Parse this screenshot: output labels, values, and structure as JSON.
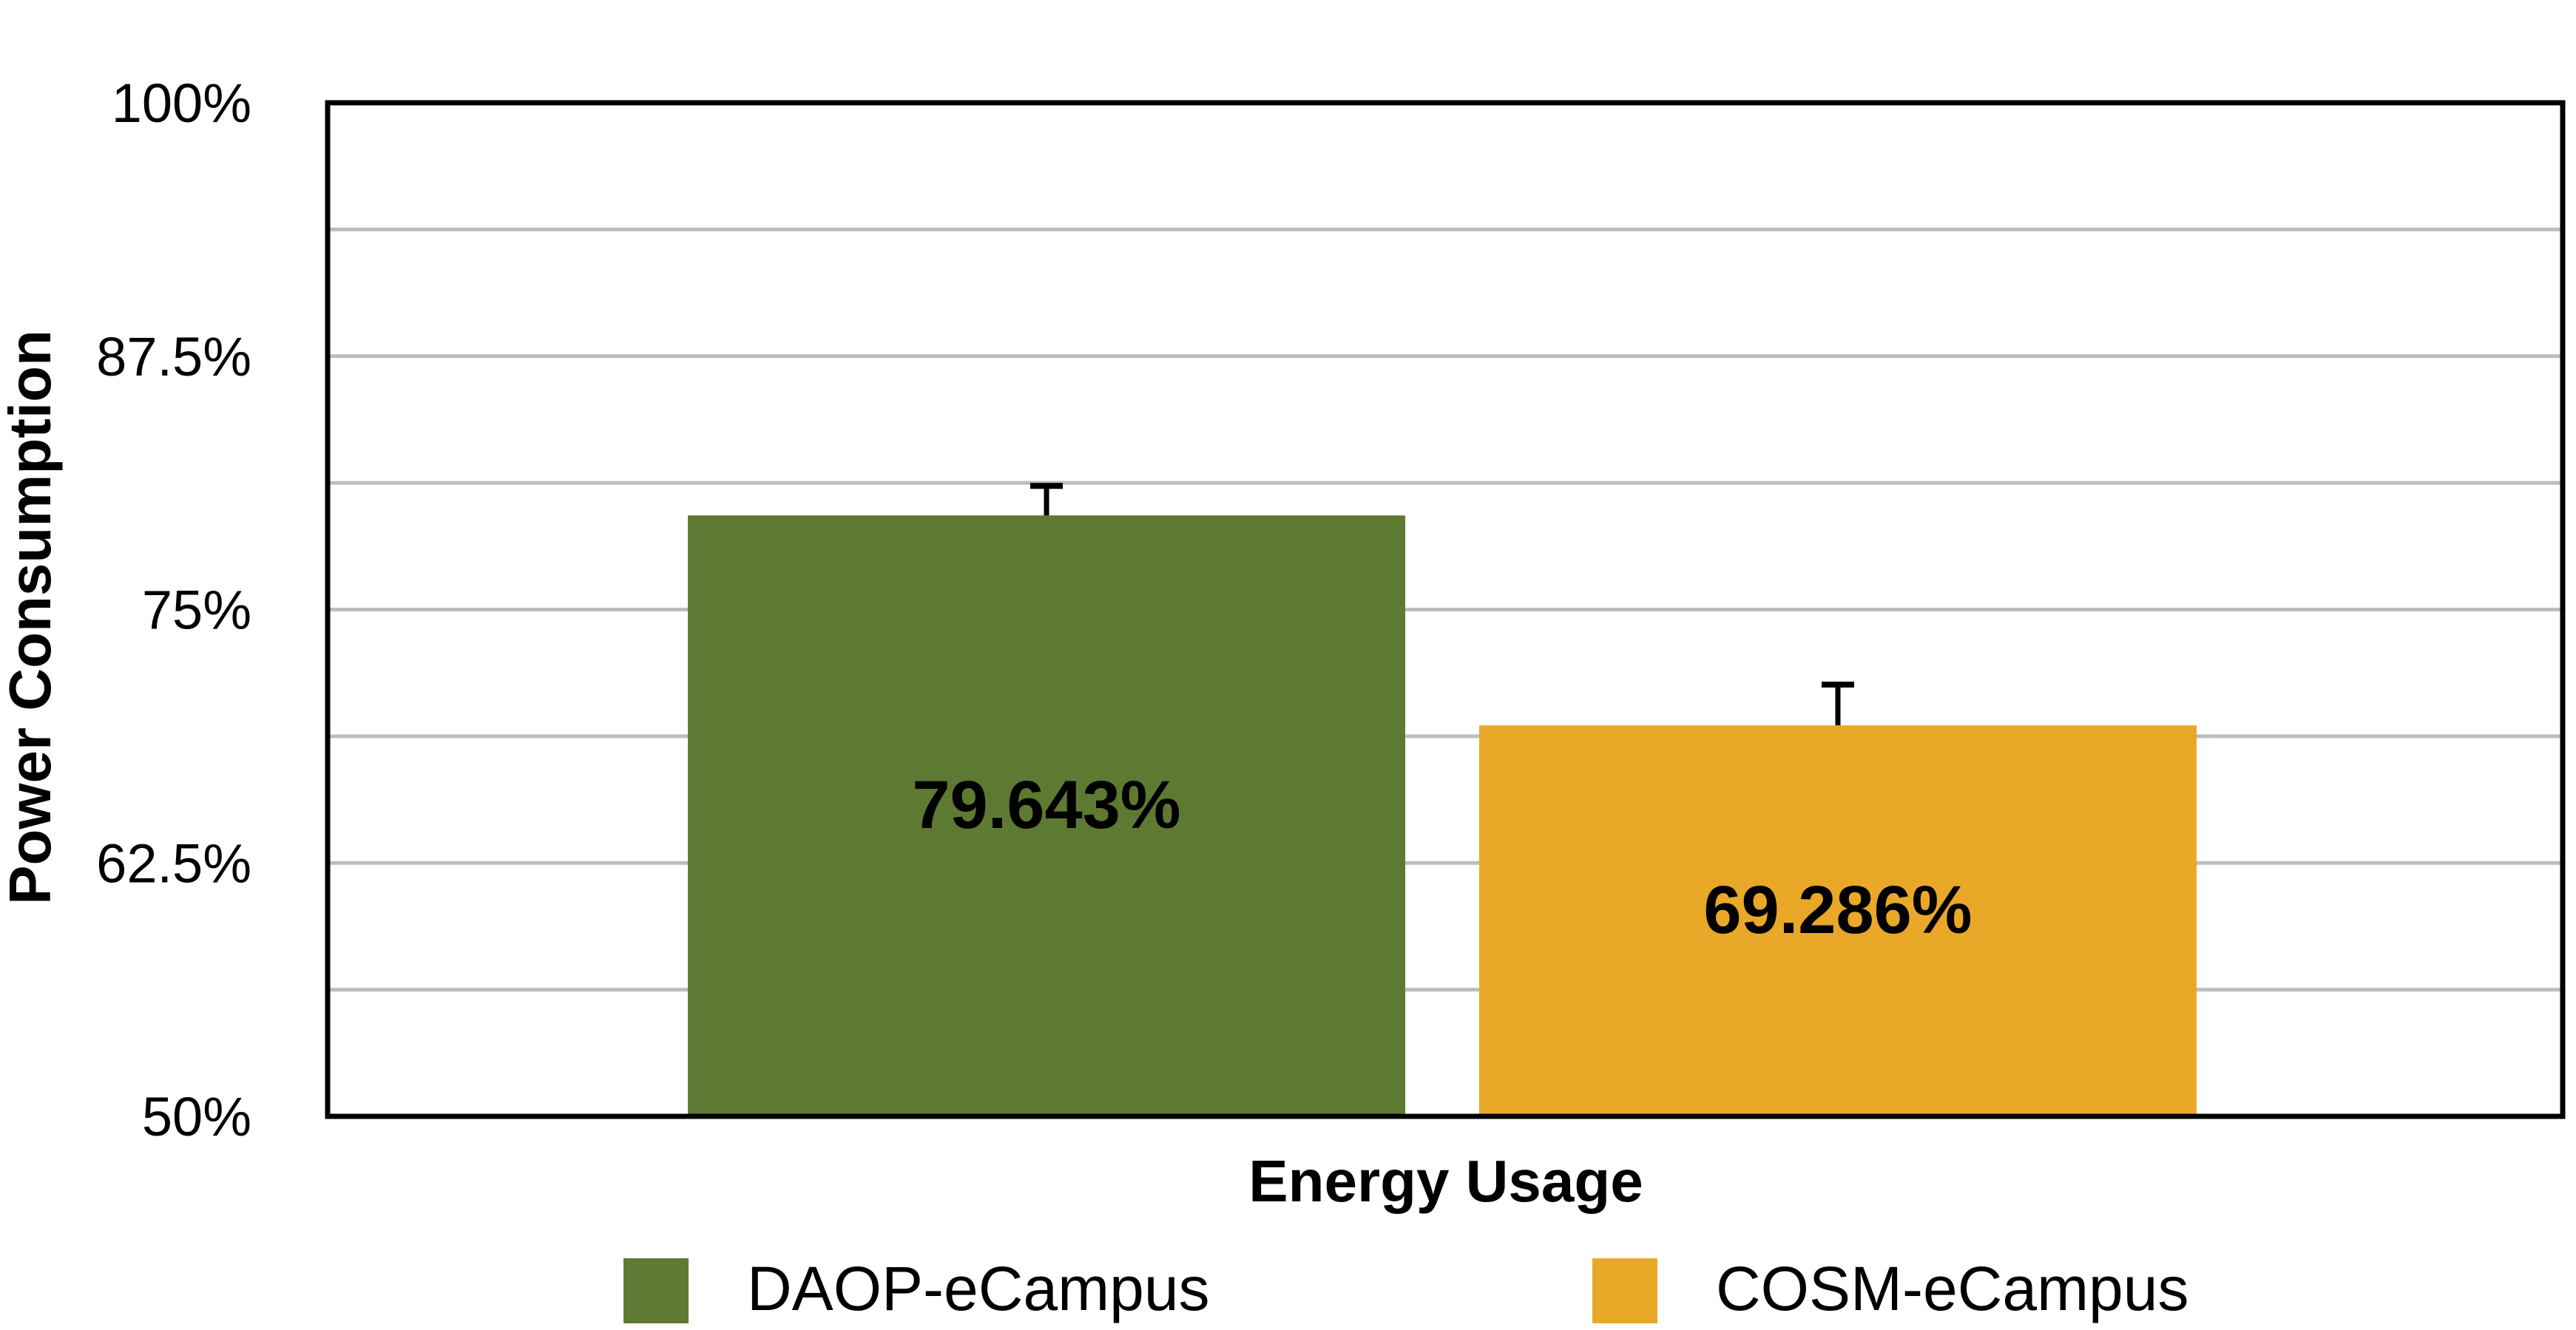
{
  "chart_data": {
    "type": "bar",
    "title": "",
    "xlabel": "Energy Usage",
    "ylabel": "Power Consumption",
    "ylim": [
      50,
      100
    ],
    "yticks": [
      50,
      62.5,
      75,
      87.5,
      100
    ],
    "ytick_labels": [
      "50%",
      "62.5%",
      "75%",
      "87.5%",
      "100%"
    ],
    "minor_gridlines": [
      56.25,
      68.75,
      81.25,
      93.75
    ],
    "grid": true,
    "categories": [
      "Energy Usage"
    ],
    "series": [
      {
        "name": "DAOP-eCampus",
        "values": [
          79.643
        ],
        "error_upper": [
          81.1
        ],
        "label": "79.643%",
        "color": "#5E7A32"
      },
      {
        "name": "COSM-eCampus",
        "values": [
          69.286
        ],
        "error_upper": [
          71.3
        ],
        "label": "69.286%",
        "color": "#EAA828"
      }
    ],
    "legend": {
      "position": "bottom",
      "entries": [
        "DAOP-eCampus",
        "COSM-eCampus"
      ]
    },
    "colors": {
      "grid": "#BDBDBD",
      "frame": "#000000",
      "text": "#000000"
    }
  }
}
